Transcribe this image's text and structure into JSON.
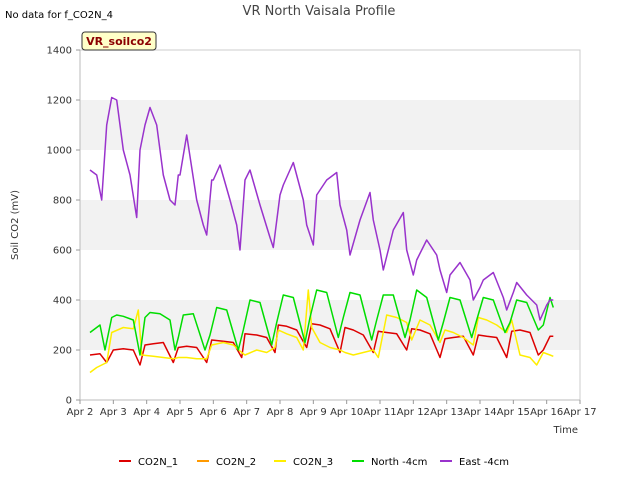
{
  "no_data_note": "No data for f_CO2N_4",
  "site_badge": "VR_soilco2",
  "chart_data": {
    "type": "line",
    "title": "VR North Vaisala Profile",
    "xlabel": "Time",
    "ylabel": "Soil CO2 (mV)",
    "xlim": [
      2.0,
      17.0
    ],
    "ylim": [
      0,
      1400
    ],
    "yticks": [
      0,
      200,
      400,
      600,
      800,
      1000,
      1200,
      1400
    ],
    "xticks": [
      {
        "label": "Apr 2",
        "day": 2
      },
      {
        "label": "Apr 3",
        "day": 3
      },
      {
        "label": "Apr 4",
        "day": 4
      },
      {
        "label": "Apr 5",
        "day": 5
      },
      {
        "label": "Apr 6",
        "day": 6
      },
      {
        "label": "Apr 7",
        "day": 7
      },
      {
        "label": "Apr 8",
        "day": 8
      },
      {
        "label": "Apr 9",
        "day": 9
      },
      {
        "label": "Apr 10",
        "day": 10
      },
      {
        "label": "Apr 11",
        "day": 11
      },
      {
        "label": "Apr 12",
        "day": 12
      },
      {
        "label": "Apr 13",
        "day": 13
      },
      {
        "label": "Apr 14",
        "day": 14
      },
      {
        "label": "Apr 15",
        "day": 15
      },
      {
        "label": "Apr 16",
        "day": 16
      },
      {
        "label": "Apr 17",
        "day": 17
      }
    ],
    "grid": "horizontal bands",
    "legend_position": "bottom",
    "series": [
      {
        "name": "CO2N_1",
        "color": "#dd0000",
        "x": [
          2.3,
          2.6,
          2.8,
          3.0,
          3.3,
          3.6,
          3.8,
          3.95,
          4.2,
          4.5,
          4.8,
          4.95,
          5.2,
          5.5,
          5.8,
          5.95,
          6.3,
          6.6,
          6.85,
          6.95,
          7.3,
          7.6,
          7.85,
          7.95,
          8.2,
          8.5,
          8.8,
          8.95,
          9.2,
          9.5,
          9.8,
          9.95,
          10.2,
          10.5,
          10.8,
          10.95,
          11.2,
          11.5,
          11.8,
          11.95,
          12.2,
          12.5,
          12.8,
          12.95,
          13.2,
          13.5,
          13.8,
          13.95,
          14.2,
          14.5,
          14.8,
          14.95,
          15.2,
          15.5,
          15.75,
          15.9,
          16.1,
          16.2
        ],
        "y": [
          180,
          185,
          150,
          200,
          205,
          200,
          140,
          220,
          225,
          230,
          150,
          210,
          215,
          210,
          150,
          240,
          235,
          230,
          170,
          265,
          260,
          250,
          190,
          300,
          295,
          280,
          210,
          305,
          300,
          285,
          190,
          290,
          280,
          260,
          190,
          275,
          270,
          265,
          200,
          285,
          280,
          265,
          170,
          245,
          250,
          255,
          180,
          260,
          255,
          250,
          170,
          275,
          280,
          270,
          180,
          200,
          255,
          255
        ]
      },
      {
        "name": "CO2N_2",
        "color": "#ff9900",
        "x": [],
        "y": []
      },
      {
        "name": "CO2N_3",
        "color": "#ffee00",
        "x": [
          2.3,
          2.5,
          2.8,
          2.95,
          3.3,
          3.6,
          3.75,
          3.85,
          4.2,
          4.5,
          4.8,
          4.95,
          5.2,
          5.5,
          5.8,
          5.95,
          6.3,
          6.6,
          6.85,
          6.95,
          7.3,
          7.6,
          7.85,
          7.95,
          8.2,
          8.5,
          8.7,
          8.85,
          8.95,
          9.2,
          9.5,
          9.8,
          9.95,
          10.2,
          10.5,
          10.8,
          10.95,
          11.2,
          11.5,
          11.8,
          11.95,
          12.2,
          12.5,
          12.8,
          12.95,
          13.2,
          13.5,
          13.8,
          13.95,
          14.2,
          14.5,
          14.8,
          14.95,
          15.2,
          15.5,
          15.7,
          15.9,
          16.1,
          16.2
        ],
        "y": [
          110,
          130,
          150,
          270,
          290,
          285,
          360,
          180,
          175,
          170,
          165,
          170,
          170,
          165,
          165,
          220,
          230,
          220,
          190,
          180,
          200,
          190,
          210,
          280,
          265,
          250,
          200,
          440,
          290,
          230,
          210,
          200,
          190,
          180,
          190,
          200,
          170,
          340,
          330,
          310,
          240,
          320,
          300,
          230,
          280,
          270,
          250,
          220,
          330,
          320,
          300,
          270,
          320,
          180,
          170,
          140,
          190,
          180,
          175
        ]
      },
      {
        "name": "North -4cm",
        "color": "#00dd00",
        "x": [
          2.3,
          2.6,
          2.75,
          2.95,
          3.1,
          3.3,
          3.6,
          3.8,
          3.95,
          4.1,
          4.4,
          4.7,
          4.85,
          4.95,
          5.1,
          5.4,
          5.75,
          5.9,
          6.1,
          6.4,
          6.75,
          6.9,
          7.1,
          7.4,
          7.75,
          7.9,
          8.1,
          8.4,
          8.75,
          8.9,
          9.1,
          9.4,
          9.75,
          9.9,
          10.1,
          10.4,
          10.75,
          10.9,
          11.1,
          11.4,
          11.75,
          11.9,
          12.1,
          12.4,
          12.75,
          12.9,
          13.1,
          13.4,
          13.75,
          13.9,
          14.1,
          14.4,
          14.75,
          14.9,
          15.1,
          15.4,
          15.75,
          15.9,
          16.1,
          16.2
        ],
        "y": [
          270,
          300,
          200,
          330,
          340,
          335,
          320,
          180,
          330,
          350,
          345,
          320,
          200,
          250,
          340,
          345,
          200,
          260,
          370,
          360,
          200,
          280,
          400,
          390,
          220,
          310,
          420,
          410,
          230,
          330,
          440,
          430,
          250,
          330,
          430,
          420,
          240,
          320,
          420,
          420,
          250,
          320,
          440,
          410,
          240,
          310,
          410,
          400,
          250,
          320,
          410,
          400,
          270,
          310,
          400,
          390,
          280,
          300,
          410,
          370
        ]
      },
      {
        "name": "East -4cm",
        "color": "#9933cc",
        "x": [
          2.3,
          2.5,
          2.65,
          2.8,
          2.95,
          3.1,
          3.3,
          3.5,
          3.7,
          3.8,
          3.95,
          4.1,
          4.3,
          4.5,
          4.7,
          4.85,
          4.95,
          5.0,
          5.2,
          5.5,
          5.7,
          5.8,
          5.95,
          6.0,
          6.2,
          6.5,
          6.7,
          6.8,
          6.95,
          7.1,
          7.4,
          7.7,
          7.8,
          8.0,
          8.1,
          8.4,
          8.7,
          8.8,
          9.0,
          9.1,
          9.4,
          9.7,
          9.8,
          10.0,
          10.1,
          10.4,
          10.7,
          10.8,
          11.0,
          11.1,
          11.4,
          11.7,
          11.8,
          12.0,
          12.1,
          12.4,
          12.7,
          12.8,
          13.0,
          13.1,
          13.4,
          13.7,
          13.8,
          14.0,
          14.1,
          14.4,
          14.7,
          14.8,
          15.0,
          15.1,
          15.4,
          15.7,
          15.8,
          16.0,
          16.1,
          16.2
        ],
        "y": [
          920,
          900,
          800,
          1100,
          1210,
          1200,
          1000,
          900,
          730,
          1000,
          1100,
          1170,
          1100,
          900,
          800,
          780,
          900,
          900,
          1060,
          800,
          700,
          660,
          880,
          880,
          940,
          800,
          700,
          600,
          880,
          920,
          780,
          650,
          610,
          820,
          860,
          950,
          800,
          700,
          620,
          820,
          880,
          910,
          780,
          680,
          580,
          720,
          830,
          720,
          600,
          520,
          680,
          750,
          600,
          500,
          560,
          640,
          580,
          520,
          430,
          500,
          550,
          480,
          400,
          450,
          480,
          510,
          410,
          360,
          430,
          470,
          420,
          380,
          320,
          380,
          400,
          400
        ]
      }
    ]
  }
}
